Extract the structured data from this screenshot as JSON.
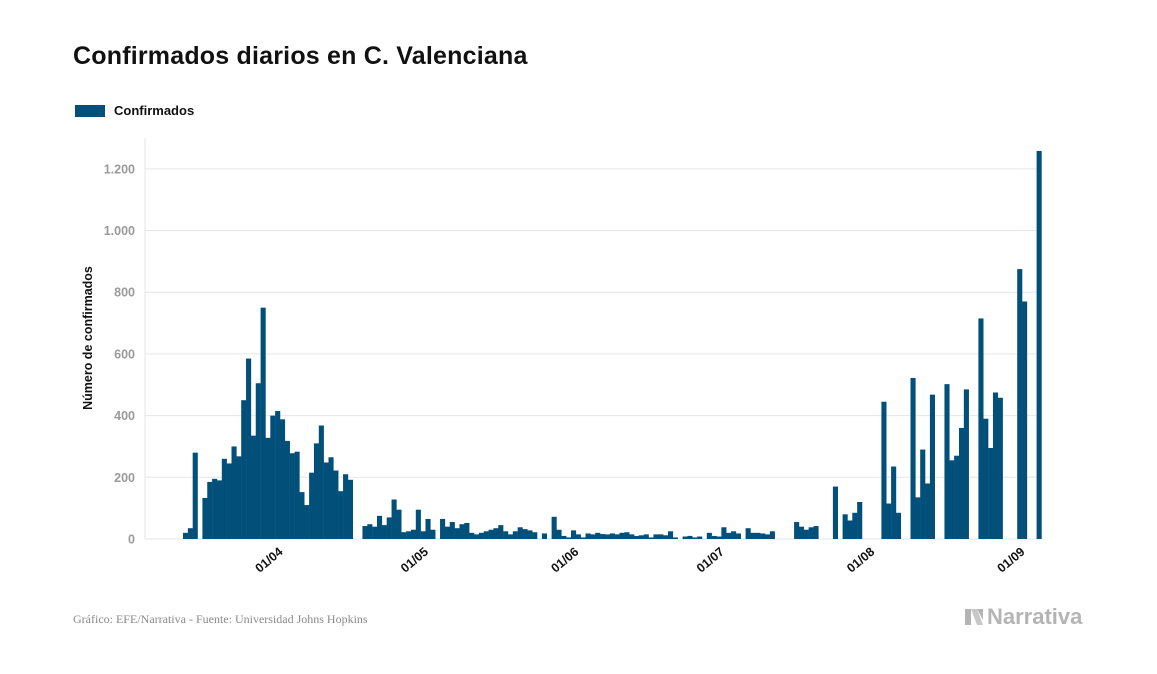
{
  "title": "Confirmados diarios en C. Valenciana",
  "legend_label": "Confirmados",
  "source": "Gráfico: EFE/Narrativa - Fuente: Universidad Johns Hopkins",
  "brand": "Narrativa",
  "colors": {
    "bar": "#02507a",
    "grid": "#e6e6e6",
    "axis_text": "#9a9a9a",
    "label_text": "#111111",
    "brand": "#b4b4b4"
  },
  "chart_data": {
    "type": "bar",
    "title": "Confirmados diarios en C. Valenciana",
    "ylabel": "Número de confirmados",
    "xlabel": "",
    "ylim": [
      0,
      1300
    ],
    "yticks": [
      0,
      200,
      400,
      600,
      800,
      1000,
      1200
    ],
    "ytick_labels": [
      "0",
      "200",
      "400",
      "600",
      "800",
      "1.000",
      "1.200"
    ],
    "x_start_date": "2020-03-13",
    "xticks": [
      {
        "label": "01/04",
        "day": 19
      },
      {
        "label": "01/05",
        "day": 49
      },
      {
        "label": "01/06",
        "day": 80
      },
      {
        "label": "01/07",
        "day": 110
      },
      {
        "label": "01/08",
        "day": 141
      },
      {
        "label": "01/09",
        "day": 172
      }
    ],
    "series": [
      {
        "name": "Confirmados",
        "values": [
          20,
          35,
          280,
          0,
          133,
          185,
          195,
          190,
          260,
          245,
          300,
          268,
          450,
          585,
          335,
          505,
          750,
          328,
          400,
          415,
          388,
          318,
          278,
          283,
          152,
          110,
          215,
          310,
          368,
          248,
          265,
          222,
          155,
          210,
          192,
          0,
          0,
          42,
          48,
          40,
          75,
          45,
          70,
          128,
          95,
          22,
          25,
          30,
          95,
          25,
          65,
          30,
          0,
          65,
          40,
          55,
          35,
          48,
          52,
          20,
          15,
          20,
          25,
          30,
          35,
          45,
          25,
          15,
          25,
          38,
          32,
          28,
          22,
          0,
          18,
          0,
          72,
          30,
          10,
          5,
          28,
          15,
          5,
          18,
          15,
          20,
          16,
          15,
          18,
          15,
          20,
          22,
          15,
          10,
          12,
          15,
          5,
          15,
          15,
          12,
          25,
          5,
          0,
          8,
          10,
          5,
          8,
          0,
          20,
          10,
          8,
          38,
          20,
          25,
          18,
          0,
          35,
          20,
          20,
          18,
          15,
          25,
          0,
          0,
          0,
          0,
          55,
          40,
          30,
          38,
          42,
          0,
          0,
          0,
          170,
          0,
          80,
          60,
          85,
          120,
          0,
          0,
          0,
          0,
          445,
          115,
          235,
          85,
          0,
          0,
          522,
          135,
          290,
          180,
          468,
          0,
          0,
          502,
          255,
          270,
          360,
          485,
          0,
          0,
          715,
          390,
          295,
          475,
          458,
          0,
          0,
          0,
          875,
          770,
          0,
          0,
          1258
        ]
      }
    ]
  }
}
